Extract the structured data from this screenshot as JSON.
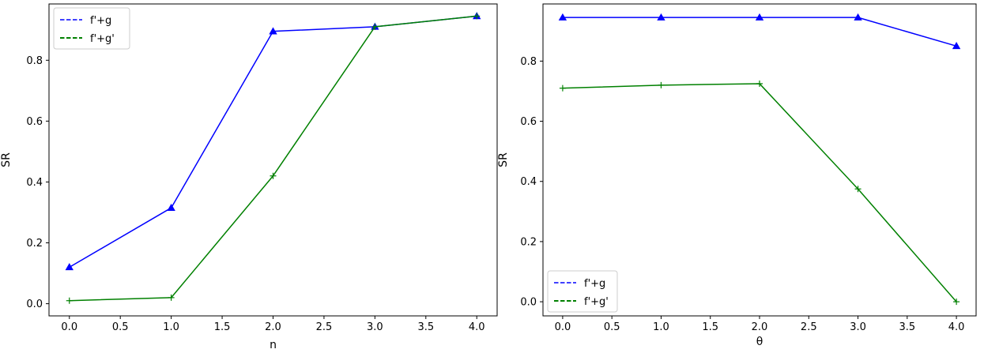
{
  "chart_data": [
    {
      "type": "line",
      "xlabel": "n",
      "ylabel": "SR",
      "xlim": [
        -0.2,
        4.2
      ],
      "ylim": [
        -0.04,
        0.985
      ],
      "xticks": [
        0.0,
        0.5,
        1.0,
        1.5,
        2.0,
        2.5,
        3.0,
        3.5,
        4.0
      ],
      "xtick_labels": [
        "0.0",
        "0.5",
        "1.0",
        "1.5",
        "2.0",
        "2.5",
        "3.0",
        "3.5",
        "4.0"
      ],
      "yticks": [
        0.0,
        0.2,
        0.4,
        0.6,
        0.8
      ],
      "ytick_labels": [
        "0.0",
        "0.2",
        "0.4",
        "0.6",
        "0.8"
      ],
      "grid": false,
      "legend_position": "upper-left",
      "series": [
        {
          "name": "f'+g",
          "color": "#0000ff",
          "marker": "triangle",
          "x": [
            0,
            1,
            2,
            3,
            4
          ],
          "y": [
            0.12,
            0.315,
            0.895,
            0.91,
            0.945
          ]
        },
        {
          "name": "f'+g'",
          "color": "#008000",
          "marker": "plus",
          "x": [
            0,
            1,
            2,
            3,
            4
          ],
          "y": [
            0.01,
            0.02,
            0.42,
            0.91,
            0.945
          ]
        }
      ]
    },
    {
      "type": "line",
      "xlabel": "θ",
      "ylabel": "SR",
      "xlim": [
        -0.2,
        4.2
      ],
      "ylim": [
        -0.047,
        0.99
      ],
      "xticks": [
        0.0,
        0.5,
        1.0,
        1.5,
        2.0,
        2.5,
        3.0,
        3.5,
        4.0
      ],
      "xtick_labels": [
        "0.0",
        "0.5",
        "1.0",
        "1.5",
        "2.0",
        "2.5",
        "3.0",
        "3.5",
        "4.0"
      ],
      "yticks": [
        0.0,
        0.2,
        0.4,
        0.6,
        0.8
      ],
      "ytick_labels": [
        "0.0",
        "0.2",
        "0.4",
        "0.6",
        "0.8"
      ],
      "grid": false,
      "legend_position": "lower-left",
      "series": [
        {
          "name": "f'+g",
          "color": "#0000ff",
          "marker": "triangle",
          "x": [
            0,
            1,
            2,
            3,
            4
          ],
          "y": [
            0.945,
            0.945,
            0.945,
            0.945,
            0.85
          ]
        },
        {
          "name": "f'+g'",
          "color": "#008000",
          "marker": "plus",
          "x": [
            0,
            1,
            2,
            3,
            4
          ],
          "y": [
            0.71,
            0.72,
            0.725,
            0.375,
            0.0
          ]
        }
      ]
    }
  ]
}
